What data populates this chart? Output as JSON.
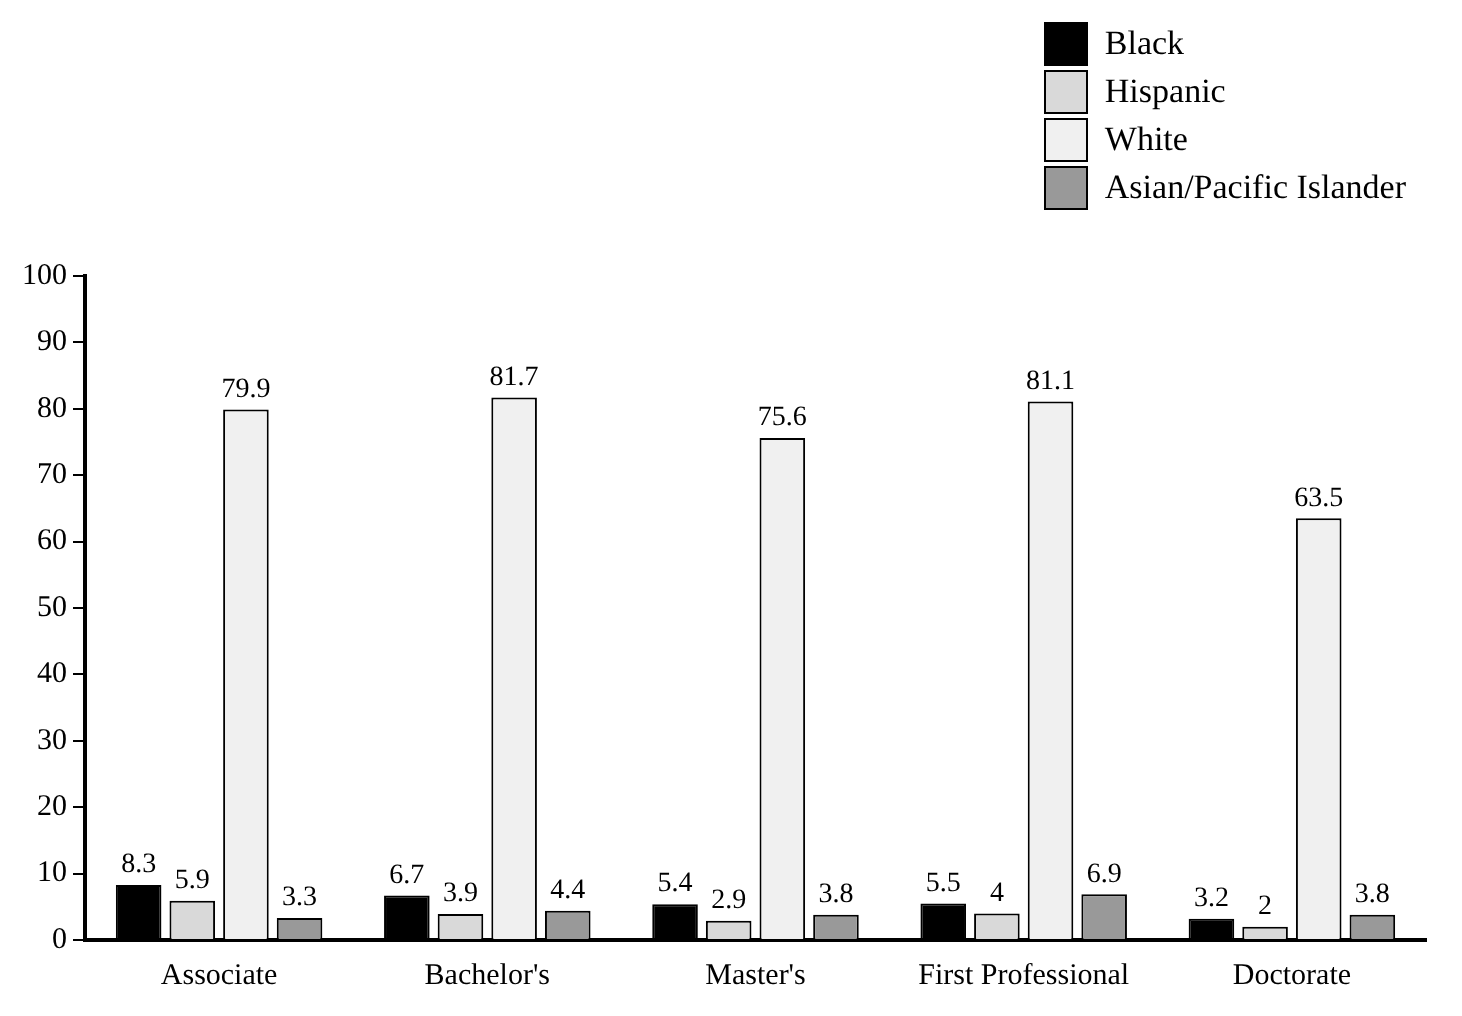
{
  "chart_data": {
    "type": "bar",
    "categories": [
      "Associate",
      "Bachelor's",
      "Master's",
      "First Professional",
      "Doctorate"
    ],
    "series": [
      {
        "name": "Black",
        "color": "#000000",
        "values": [
          8.3,
          6.7,
          5.4,
          5.5,
          3.2
        ]
      },
      {
        "name": "Hispanic",
        "color": "#d9d9d9",
        "values": [
          5.9,
          3.9,
          2.9,
          4,
          2
        ]
      },
      {
        "name": "White",
        "color": "#f0f0f0",
        "values": [
          79.9,
          81.7,
          75.6,
          81.1,
          63.5
        ]
      },
      {
        "name": "Asian/Pacific Islander",
        "color": "#999999",
        "values": [
          3.3,
          4.4,
          3.8,
          6.9,
          3.8
        ]
      }
    ],
    "ylim": [
      0,
      100
    ],
    "yticks": [
      0,
      10,
      20,
      30,
      40,
      50,
      60,
      70,
      80,
      90,
      100
    ],
    "grid": false,
    "legend": "top right",
    "data_labels": true
  }
}
